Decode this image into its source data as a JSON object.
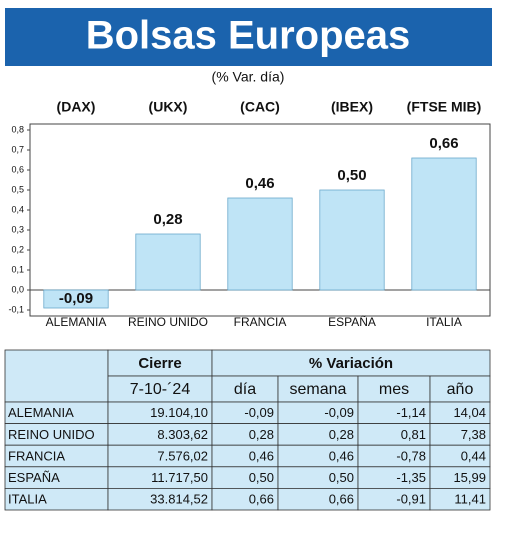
{
  "chart_data": {
    "type": "bar",
    "title": "Bolsas Europeas",
    "subtitle": "(% Var. día)",
    "indices": [
      "(DAX)",
      "(UKX)",
      "(CAC)",
      "(IBEX)",
      "(FTSE MIB)"
    ],
    "categories": [
      "ALEMANIA",
      "REINO UNIDO",
      "FRANCIA",
      "ESPAÑA",
      "ITALIA"
    ],
    "values": [
      -0.09,
      0.28,
      0.46,
      0.5,
      0.66
    ],
    "value_labels": [
      "-0,09",
      "0,28",
      "0,46",
      "0,50",
      "0,66"
    ],
    "color": "#bfe4f6",
    "ylim": [
      -0.1,
      0.8
    ],
    "yticks": [
      {
        "value": -0.1,
        "label": "-0,1"
      },
      {
        "value": 0,
        "label": "0,0"
      },
      {
        "value": 0.1,
        "label": "0,1"
      },
      {
        "value": 0.2,
        "label": "0,2"
      },
      {
        "value": 0.3,
        "label": "0,3"
      },
      {
        "value": 0.4,
        "label": "0,4"
      },
      {
        "value": 0.5,
        "label": "0,5"
      },
      {
        "value": 0.6,
        "label": "0,6"
      },
      {
        "value": 0.7,
        "label": "0,7"
      },
      {
        "value": 0.8,
        "label": "0,8"
      }
    ],
    "grid": false
  },
  "table": {
    "header": [
      "Cierre",
      "% Variación"
    ],
    "subheader": [
      "7-10-´24",
      "día",
      "semana",
      "mes",
      "año"
    ],
    "rows": [
      [
        "ALEMANIA",
        "19.104,10",
        "-0,09",
        "-0,09",
        "-1,14",
        "14,04"
      ],
      [
        "REINO UNIDO",
        "8.303,62",
        "0,28",
        "0,28",
        "0,81",
        "7,38"
      ],
      [
        "FRANCIA",
        "7.576,02",
        "0,46",
        "0,46",
        "-0,78",
        "0,44"
      ],
      [
        "ESPAÑA",
        "11.717,50",
        "0,50",
        "0,50",
        "-1,35",
        "15,99"
      ],
      [
        "ITALIA",
        "33.814,52",
        "0,66",
        "0,66",
        "-0,91",
        "11,41"
      ]
    ]
  }
}
